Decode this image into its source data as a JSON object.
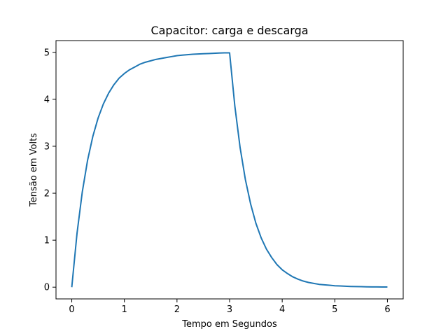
{
  "chart_data": {
    "type": "line",
    "title": "Capacitor: carga e descarga",
    "xlabel": "Tempo em Segundos",
    "ylabel": "Tensão em Volts",
    "xlim": [
      -0.3,
      6.3
    ],
    "ylim": [
      -0.25,
      5.25
    ],
    "xticks": [
      0,
      1,
      2,
      3,
      4,
      5,
      6
    ],
    "yticks": [
      0,
      1,
      2,
      3,
      4,
      5
    ],
    "grid": false,
    "legend": "none",
    "series": [
      {
        "color": "#1f77b4",
        "x": [
          0,
          0.1,
          0.2,
          0.3,
          0.4,
          0.5,
          0.6,
          0.7,
          0.8,
          0.9,
          1.0,
          1.1,
          1.2,
          1.3,
          1.4,
          1.5,
          1.6,
          1.7,
          1.8,
          1.9,
          2.0,
          2.1,
          2.2,
          2.3,
          2.4,
          2.5,
          2.6,
          2.7,
          2.8,
          2.9,
          3.0,
          3.1,
          3.2,
          3.3,
          3.4,
          3.5,
          3.6,
          3.7,
          3.8,
          3.9,
          4.0,
          4.1,
          4.2,
          4.3,
          4.4,
          4.5,
          4.6,
          4.7,
          4.8,
          4.9,
          5.0,
          5.1,
          5.2,
          5.3,
          5.4,
          5.5,
          5.6,
          5.7,
          5.8,
          5.9,
          6.0
        ],
        "y": [
          0,
          1.15,
          2.03,
          2.7,
          3.21,
          3.6,
          3.9,
          4.13,
          4.31,
          4.45,
          4.55,
          4.63,
          4.69,
          4.75,
          4.79,
          4.82,
          4.85,
          4.87,
          4.89,
          4.91,
          4.93,
          4.94,
          4.95,
          4.96,
          4.965,
          4.97,
          4.975,
          4.98,
          4.985,
          4.99,
          4.99,
          3.85,
          2.97,
          2.29,
          1.77,
          1.36,
          1.05,
          0.81,
          0.63,
          0.48,
          0.37,
          0.29,
          0.22,
          0.17,
          0.13,
          0.1,
          0.08,
          0.06,
          0.05,
          0.04,
          0.03,
          0.025,
          0.02,
          0.015,
          0.012,
          0.01,
          0.008,
          0.006,
          0.005,
          0.004,
          0.003
        ]
      }
    ]
  }
}
